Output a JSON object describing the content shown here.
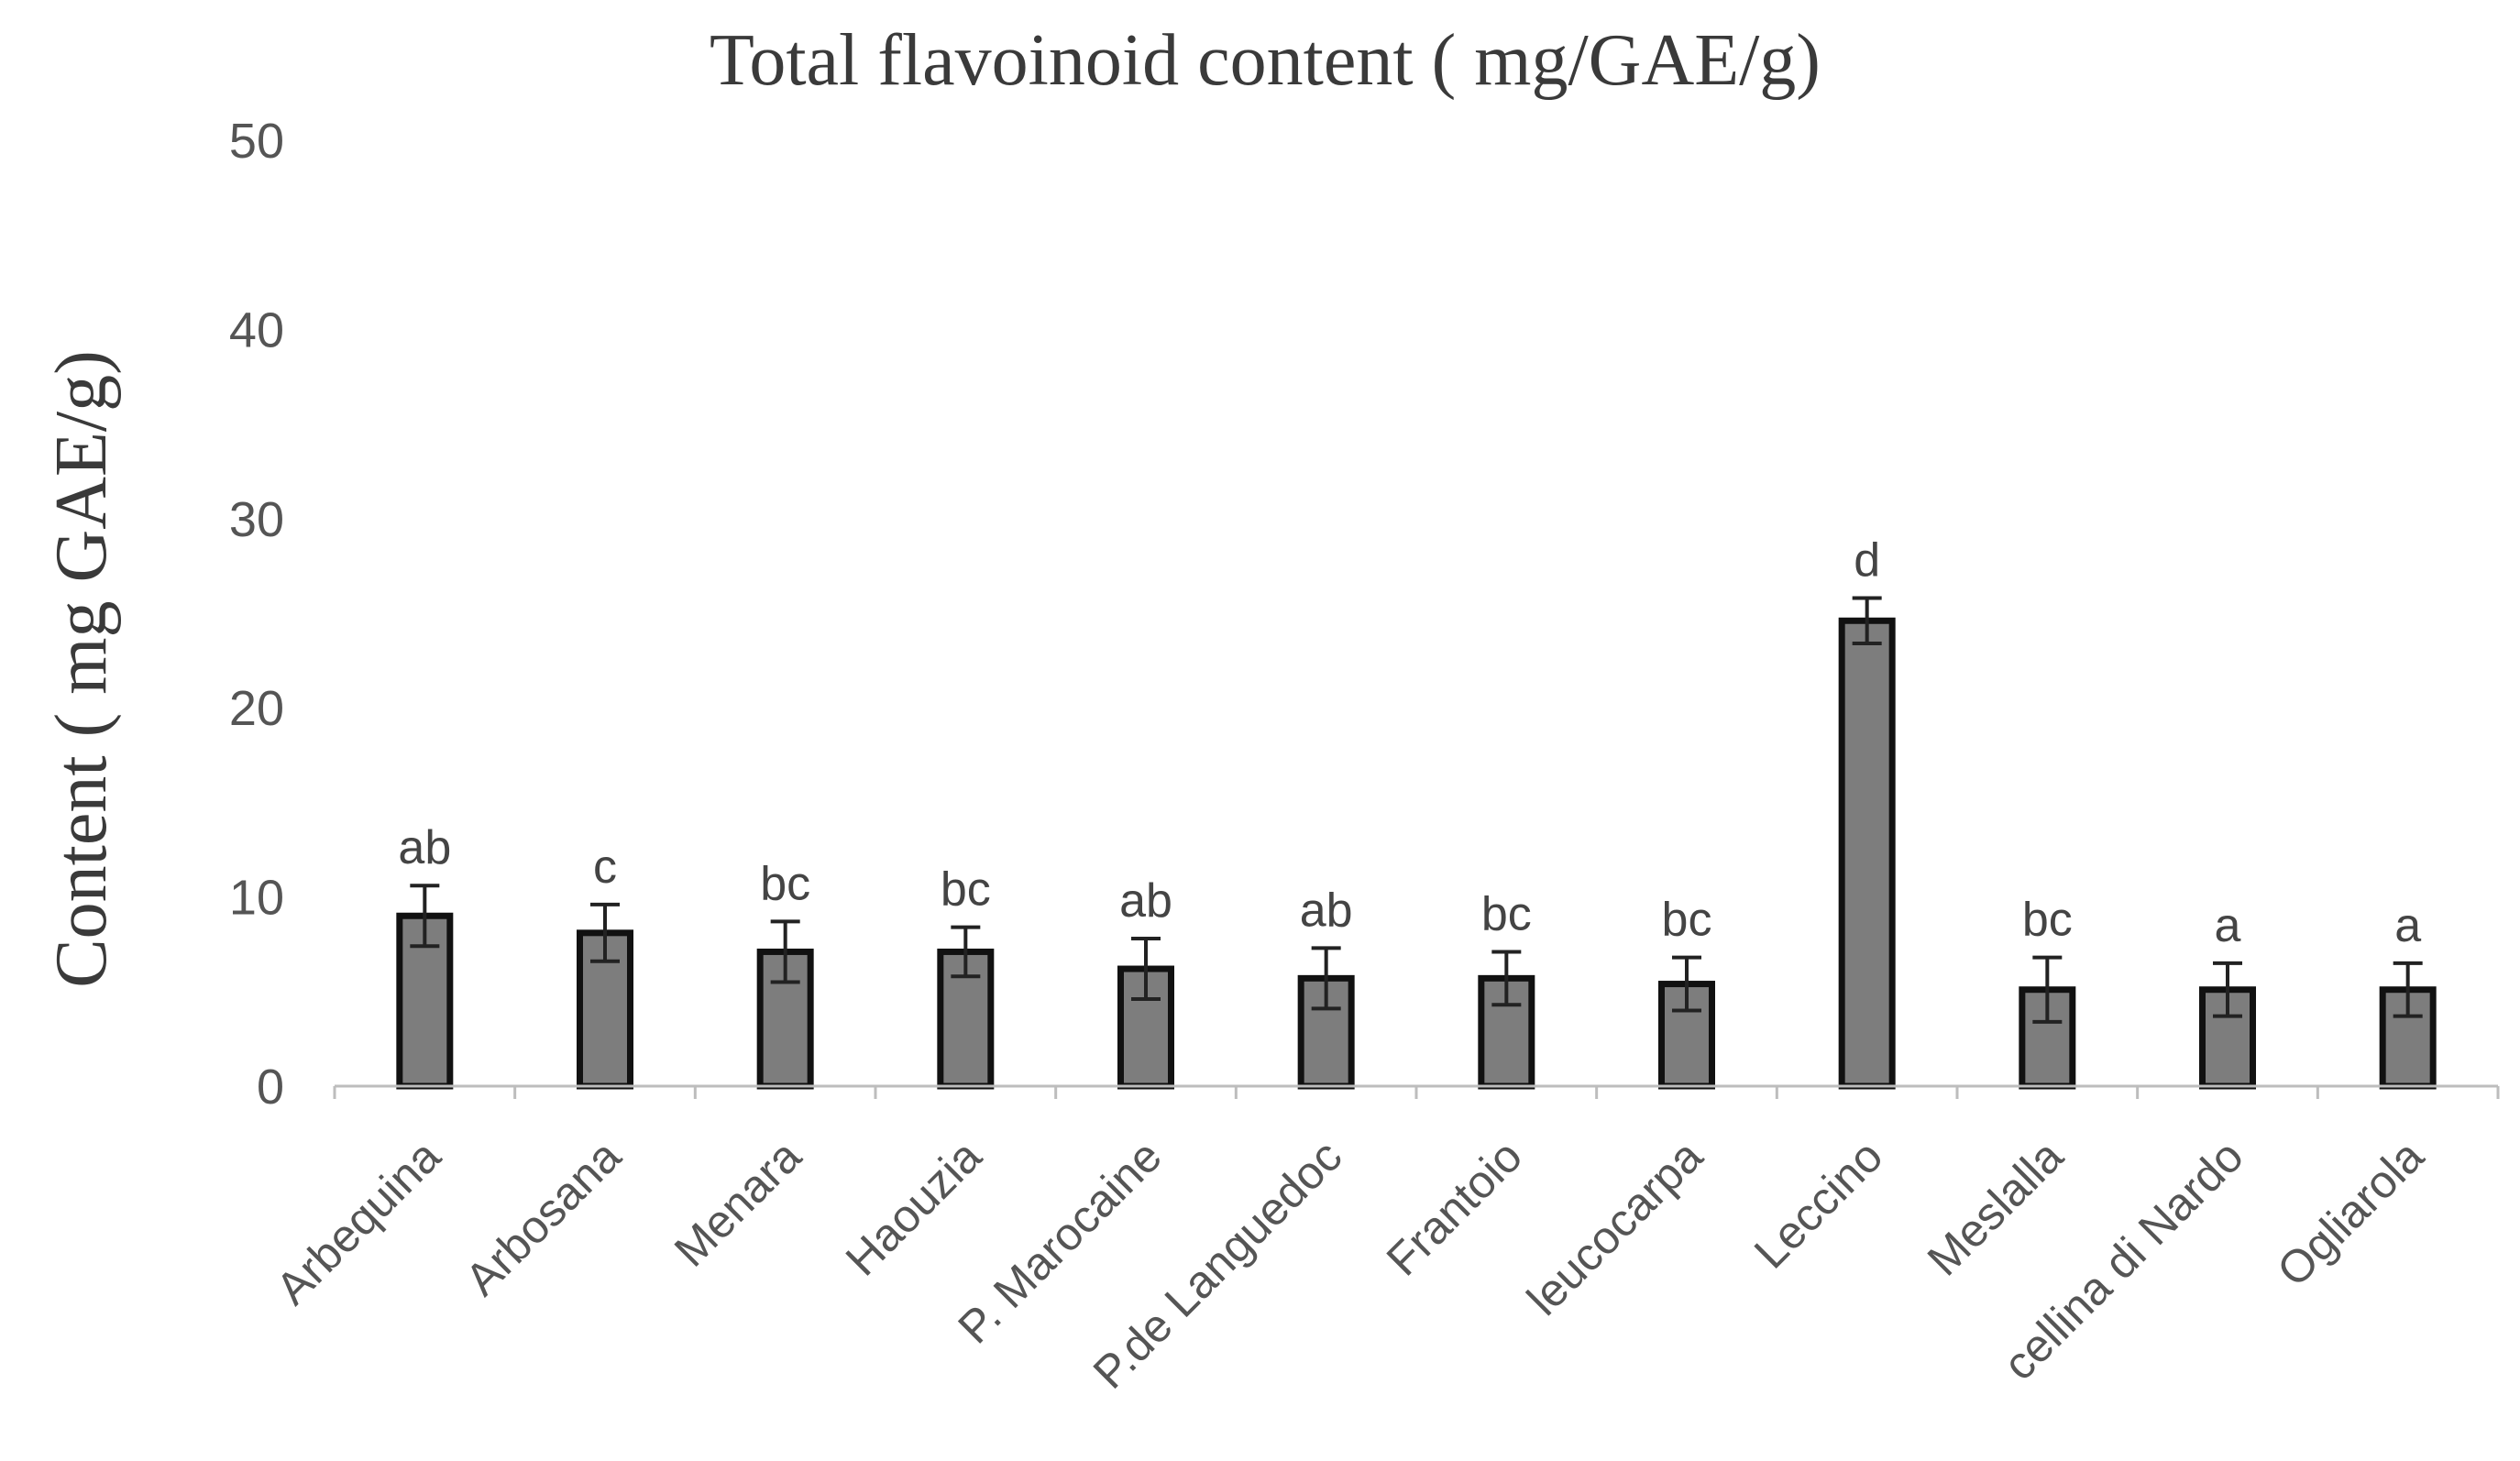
{
  "chart_data": {
    "type": "bar",
    "title": "Total flavoinoid content ( mg/GAE/g)",
    "xlabel": "",
    "ylabel": "Content ( mg GAE/g)",
    "ylim": [
      0,
      50
    ],
    "yticks": [
      0,
      10,
      20,
      30,
      40,
      50
    ],
    "grid": false,
    "legend": "none",
    "categories": [
      "Arbequina",
      "Arbosana",
      "Menara",
      "Haouzia",
      "P. Marocaine",
      "P.de Languedoc",
      "Frantoio",
      "leucocarpa",
      "Leccino",
      "Meslalla",
      "cellina di Nardo",
      "Ogliarola"
    ],
    "values": [
      9.0,
      8.1,
      7.1,
      7.1,
      6.2,
      5.7,
      5.7,
      5.4,
      24.6,
      5.1,
      5.1,
      5.1
    ],
    "errors": [
      1.6,
      1.5,
      1.6,
      1.3,
      1.6,
      1.6,
      1.4,
      1.4,
      1.2,
      1.7,
      1.4,
      1.4
    ],
    "data_labels": [
      "ab",
      "c",
      "bc",
      "bc",
      "ab",
      "ab",
      "bc",
      "bc",
      "d",
      "bc",
      "a",
      "a"
    ],
    "bar_color": "#7d7d7d",
    "bar_edge_color": "#111111"
  }
}
